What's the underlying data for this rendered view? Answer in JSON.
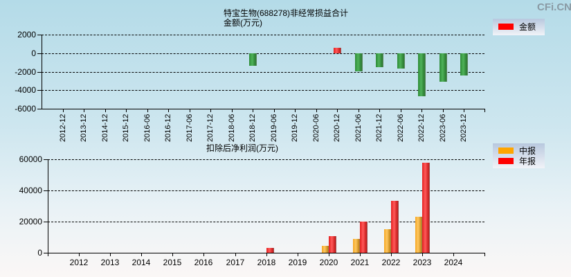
{
  "watermark": "CFi.CN",
  "chart_data": [
    {
      "type": "bar",
      "title": "特宝生物(688278)非经常损益合计",
      "subtitle": "金额(万元)",
      "xlabel": "",
      "ylabel": "金额(万元)",
      "ylim": [
        -6000,
        2000
      ],
      "yticks": [
        2000,
        0,
        -2000,
        -4000,
        -6000
      ],
      "grid": true,
      "legend_position": "top-right",
      "legend": [
        "金额"
      ],
      "categories": [
        "2012-12",
        "2013-12",
        "2014-12",
        "2015-12",
        "2016-06",
        "2016-12",
        "2017-06",
        "2017-12",
        "2018-06",
        "2018-12",
        "2019-06",
        "2019-12",
        "2020-06",
        "2020-12",
        "2021-06",
        "2021-12",
        "2022-06",
        "2022-12",
        "2023-06",
        "2023-12"
      ],
      "series": [
        {
          "name": "金额",
          "values": [
            null,
            null,
            null,
            null,
            null,
            null,
            null,
            null,
            null,
            -1400,
            null,
            null,
            null,
            600,
            -1950,
            -1500,
            -1700,
            -4650,
            -3100,
            -2400
          ]
        }
      ],
      "colors": {
        "positive": "#ff0000",
        "negative": "#2e8b38"
      }
    },
    {
      "type": "bar",
      "title": "扣除后净利润(万元)",
      "xlabel": "",
      "ylabel": "",
      "ylim": [
        0,
        60000
      ],
      "yticks": [
        60000,
        40000,
        20000,
        0
      ],
      "grid": true,
      "legend_position": "top-right",
      "legend": [
        "中报",
        "年报"
      ],
      "categories": [
        "2012",
        "2013",
        "2014",
        "2015",
        "2016",
        "2017",
        "2018",
        "2019",
        "2020",
        "2021",
        "2022",
        "2023",
        "2024"
      ],
      "series": [
        {
          "name": "中报",
          "color": "#ffa500",
          "values": [
            null,
            null,
            null,
            null,
            null,
            null,
            null,
            null,
            4400,
            9000,
            15000,
            23300,
            null
          ]
        },
        {
          "name": "年报",
          "color": "#ff0000",
          "values": [
            null,
            null,
            null,
            null,
            null,
            null,
            3000,
            null,
            10700,
            20000,
            33500,
            58000,
            null
          ]
        }
      ]
    }
  ]
}
